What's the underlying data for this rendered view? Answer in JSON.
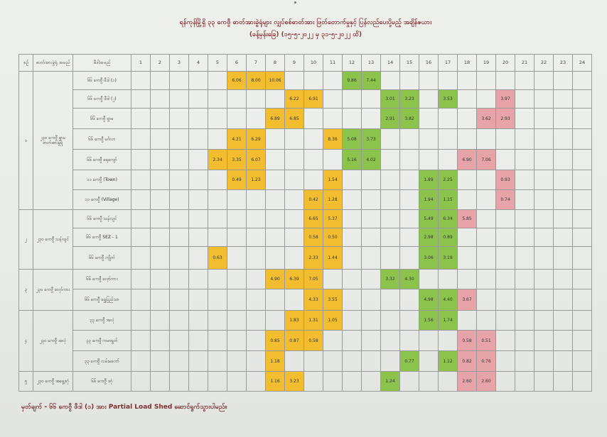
{
  "title_lines": [
    "ရန်ကုန်မြို့ရှိ ၃၃ ကေဗွီ ဓာတ်အားခွဲရုံများ လျှပ်စစ်ဓာတ်အား ဖြတ်တောက်မှုနှင့် ပြန်လည်ပေးပို့မည့် အချိန်ဇယား",
    "(ခန့်မှန်းခြေ) (၁၅-၅-၂၀၂၂ မှ ၃၁-၅-၂၀၂၂ ထိ)"
  ],
  "headers": {
    "serial": "စဉ်",
    "group": "ဓာတ်အားခွဲရုံ အမည်",
    "feeder": "ဖီဒါအမည်",
    "hours": [
      "1",
      "2",
      "3",
      "4",
      "5",
      "6",
      "7",
      "8",
      "9",
      "10",
      "11",
      "12",
      "13",
      "14",
      "15",
      "16",
      "17",
      "18",
      "19",
      "20",
      "21",
      "22",
      "23",
      "24"
    ]
  },
  "groups": [
    {
      "serial": "၁",
      "name": "၂၃၀ ကေဗွီ ရွာမဓာတ်အားခွဲရုံ",
      "rows": 7
    },
    {
      "serial": "၂",
      "name": "၂၃၀ ကေဗွီ သန်လျင်",
      "rows": 3
    },
    {
      "serial": "၃",
      "name": "၂၃၀ ကေဗွီ လှော်ကား",
      "rows": 2
    },
    {
      "serial": "၄",
      "name": "၂၃၀ ကေဗွီ အလုံ",
      "rows": 3
    },
    {
      "serial": "၅",
      "name": "၂၃၀ ကေဗွီ အရှေ့ဒဂုံ",
      "rows": 1
    }
  ],
  "rows": [
    {
      "feeder": "၆၆ ကေဗွီ ဖီဒါ (၁)",
      "cells": [
        [
          6,
          "6.06",
          "y"
        ],
        [
          7,
          "8.00",
          "y"
        ],
        [
          8,
          "10.06",
          "y"
        ],
        [
          12,
          "9.86",
          "g"
        ],
        [
          13,
          "7.44",
          "g"
        ]
      ]
    },
    {
      "feeder": "၆၆ ကေဗွီ ဖီဒါ (၂)",
      "cells": [
        [
          9,
          "6.22",
          "y"
        ],
        [
          10,
          "6.91",
          "y"
        ],
        [
          14,
          "3.01",
          "g"
        ],
        [
          15,
          "3.23",
          "g"
        ],
        [
          17,
          "3.53",
          "g"
        ],
        [
          20,
          "3.97",
          "p"
        ]
      ]
    },
    {
      "feeder": "၆၆ ကေဗွီ ရွာမ",
      "cells": [
        [
          8,
          "6.89",
          "y"
        ],
        [
          9,
          "6.85",
          "y"
        ],
        [
          14,
          "2.91",
          "g"
        ],
        [
          15,
          "3.82",
          "g"
        ],
        [
          19,
          "3.62",
          "p"
        ],
        [
          20,
          "2.93",
          "p"
        ]
      ]
    },
    {
      "feeder": "၆၆ ကေဗွီ မင်္ဂလာ",
      "cells": [
        [
          6,
          "4.21",
          "y"
        ],
        [
          7,
          "6.29",
          "y"
        ],
        [
          11,
          "8.36",
          "y"
        ],
        [
          12,
          "5.08",
          "g"
        ],
        [
          13,
          "3.73",
          "g"
        ]
      ]
    },
    {
      "feeder": "၆၆ ကေဗွီ ရေကျော်",
      "cells": [
        [
          5,
          "2.34",
          "y"
        ],
        [
          6,
          "3.35",
          "y"
        ],
        [
          7,
          "6.07",
          "y"
        ],
        [
          12,
          "5.16",
          "g"
        ],
        [
          13,
          "4.02",
          "g"
        ],
        [
          18,
          "6.90",
          "p"
        ],
        [
          19,
          "7.06",
          "p"
        ]
      ]
    },
    {
      "feeder": "၁၁ ကေဗွီ (Town)",
      "cells": [
        [
          6,
          "0.49",
          "y"
        ],
        [
          7,
          "1.23",
          "y"
        ],
        [
          11,
          "1.54",
          "y"
        ],
        [
          16,
          "1.89",
          "g"
        ],
        [
          17,
          "2.25",
          "g"
        ],
        [
          20,
          "0.93",
          "p"
        ]
      ]
    },
    {
      "feeder": "၁၁ ကေဗွီ (Village)",
      "cells": [
        [
          10,
          "0.42",
          "y"
        ],
        [
          11,
          "1.28",
          "y"
        ],
        [
          16,
          "1.94",
          "g"
        ],
        [
          17,
          "1.15",
          "g"
        ],
        [
          20,
          "0.74",
          "p"
        ]
      ]
    },
    {
      "feeder": "၆၆ ကေဗွီ သန်လျင်",
      "cells": [
        [
          10,
          "6.65",
          "y"
        ],
        [
          11,
          "5.37",
          "y"
        ],
        [
          16,
          "5.49",
          "g"
        ],
        [
          17,
          "6.34",
          "g"
        ],
        [
          18,
          "5.85",
          "p"
        ]
      ]
    },
    {
      "feeder": "၆၆ ကေဗွီ SEZ - 1",
      "cells": [
        [
          10,
          "0.58",
          "y"
        ],
        [
          11,
          "0.50",
          "y"
        ],
        [
          16,
          "2.98",
          "g"
        ],
        [
          17,
          "0.89",
          "g"
        ]
      ]
    },
    {
      "feeder": "၆၆ ကေဗွီ ကျိုက်",
      "cells": [
        [
          5,
          "0.63",
          "y"
        ],
        [
          10,
          "2.33",
          "y"
        ],
        [
          11,
          "1.44",
          "y"
        ],
        [
          16,
          "3.06",
          "g"
        ],
        [
          17,
          "3.19",
          "g"
        ]
      ]
    },
    {
      "feeder": "၆၆ ကေဗွီ လှော်ကား",
      "cells": [
        [
          8,
          "4.90",
          "y"
        ],
        [
          9,
          "6.39",
          "y"
        ],
        [
          10,
          "7.05",
          "y"
        ],
        [
          14,
          "3.32",
          "g"
        ],
        [
          15,
          "4.30",
          "g"
        ]
      ]
    },
    {
      "feeder": "၆၆ ကေဗွီ ရွှေပြည်သာ",
      "cells": [
        [
          10,
          "4.33",
          "y"
        ],
        [
          11,
          "3.55",
          "y"
        ],
        [
          16,
          "4.98",
          "g"
        ],
        [
          17,
          "4.40",
          "g"
        ],
        [
          18,
          "3.67",
          "p"
        ]
      ]
    },
    {
      "feeder": "၃၃ ကေဗွီ အလုံ",
      "cells": [
        [
          9,
          "1.83",
          "y"
        ],
        [
          10,
          "1.31",
          "y"
        ],
        [
          11,
          "1.05",
          "y"
        ],
        [
          16,
          "1.56",
          "g"
        ],
        [
          17,
          "1.74",
          "g"
        ]
      ]
    },
    {
      "feeder": "၃၃ ကေဗွီ ကမာရွတ်",
      "cells": [
        [
          8,
          "0.85",
          "y"
        ],
        [
          9,
          "0.87",
          "y"
        ],
        [
          10,
          "0.58",
          "y"
        ],
        [
          18,
          "0.58",
          "p"
        ],
        [
          19,
          "0.51",
          "p"
        ]
      ]
    },
    {
      "feeder": "၃၃ ကေဗွီ လမ်းမတော်",
      "cells": [
        [
          8,
          "1.18",
          "y"
        ],
        [
          15,
          "0.77",
          "g"
        ],
        [
          17,
          "1.12",
          "g"
        ],
        [
          18,
          "0.82",
          "p"
        ],
        [
          19,
          "0.76",
          "p"
        ]
      ]
    },
    {
      "feeder": "၆၆ ကေဗွီ ဒဂုံ",
      "cells": [
        [
          8,
          "1.16",
          "y"
        ],
        [
          9,
          "3.23",
          "y"
        ],
        [
          14,
          "1.24",
          "g"
        ],
        [
          18,
          "2.60",
          "p"
        ],
        [
          19,
          "2.60",
          "p"
        ]
      ]
    }
  ],
  "note": "မှတ်ချက် - ၆၆ ကေဗွီ ဖီဒါ (၁) အား Partial Load Shed ဆောင်ရွက်သွားပါမည်။"
}
